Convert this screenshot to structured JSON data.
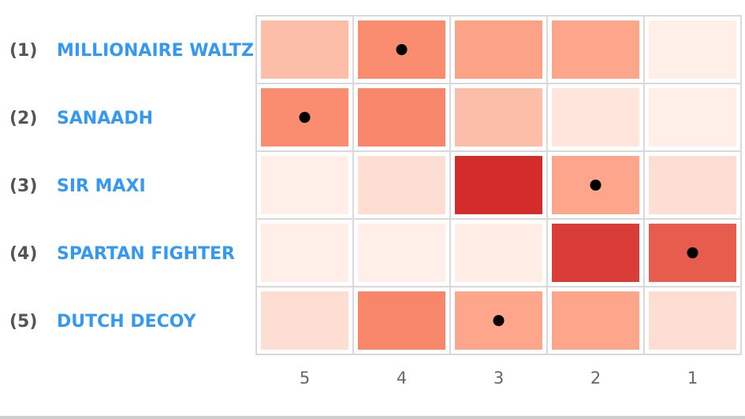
{
  "chart_data": {
    "type": "heatmap",
    "title": "",
    "xlabel": "",
    "ylabel": "",
    "x_categories": [
      "5",
      "4",
      "3",
      "2",
      "1"
    ],
    "rows": [
      {
        "rank": "(1)",
        "name": "MILLIONAIRE WALTZ",
        "values": [
          0.28,
          0.52,
          0.42,
          0.4,
          0.03
        ],
        "marked": "4"
      },
      {
        "rank": "(2)",
        "name": "SANAADH",
        "values": [
          0.52,
          0.55,
          0.28,
          0.08,
          0.03
        ],
        "marked": "5"
      },
      {
        "rank": "(3)",
        "name": "SIR MAXI",
        "values": [
          0.03,
          0.12,
          0.92,
          0.4,
          0.12
        ],
        "marked": "2"
      },
      {
        "rank": "(4)",
        "name": "SPARTAN FIGHTER",
        "values": [
          0.03,
          0.03,
          0.04,
          0.85,
          0.72
        ],
        "marked": "1"
      },
      {
        "rank": "(5)",
        "name": "DUTCH DECOY",
        "values": [
          0.12,
          0.55,
          0.4,
          0.4,
          0.12
        ],
        "marked": "3"
      }
    ],
    "color_scale": {
      "low": "#fff5f0",
      "mid": "#fc9272",
      "high": "#cb181d"
    },
    "grid": true,
    "legend": "none"
  },
  "colors": {
    "name_link": "#3399f3",
    "rank_text": "#555555",
    "cell_border": "#d9d9d9",
    "marker": "#000000"
  }
}
